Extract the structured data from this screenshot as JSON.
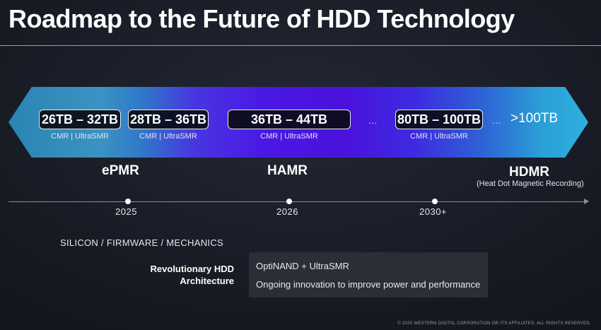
{
  "title": "Roadmap to the Future of HDD Technology",
  "capacities": [
    {
      "label": "26TB – 32TB",
      "sub": "CMR | UltraSMR"
    },
    {
      "label": "28TB – 36TB",
      "sub": "CMR | UltraSMR"
    },
    {
      "label": "36TB – 44TB",
      "sub": "CMR | UltraSMR"
    },
    {
      "label": "80TB – 100TB",
      "sub": "CMR | UltraSMR"
    },
    {
      "label": ">100TB"
    }
  ],
  "ellipsis": "...",
  "technologies": [
    {
      "name": "ePMR"
    },
    {
      "name": "HAMR"
    },
    {
      "name": "HDMR",
      "subtitle": "(Heat Dot Magnetic Recording)"
    }
  ],
  "timeline": [
    "2025",
    "2026",
    "2030+"
  ],
  "section_heading": "SILICON / FIRMWARE / MECHANICS",
  "architecture": {
    "label_line1": "Revolutionary HDD",
    "label_line2": "Architecture",
    "items": [
      "OptiNAND + UltraSMR",
      "Ongoing innovation to improve power and performance"
    ]
  },
  "footer": "© 2025 WESTERN DIGITAL CORPORATION OR ITS AFFILIATES. ALL RIGHTS RESERVED.",
  "colors": {
    "background": "#161a22",
    "band_cyan": "#2b84b3",
    "band_violet": "#4a12dc",
    "pill_bg": "#0a0c16"
  }
}
